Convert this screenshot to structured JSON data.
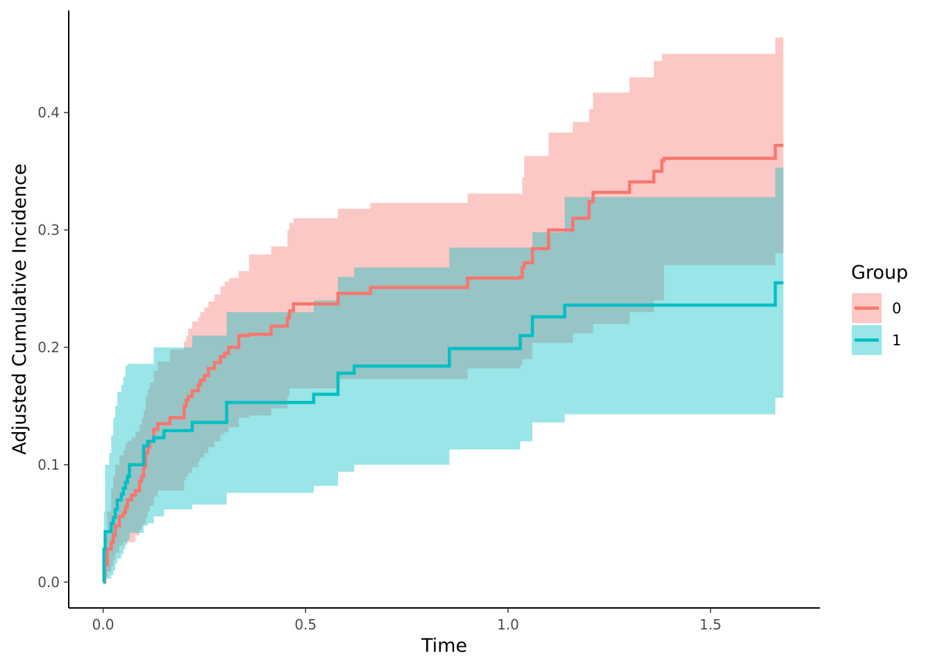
{
  "chart_data": {
    "type": "line",
    "step": true,
    "xlabel": "Time",
    "ylabel": "Adjusted Cumulative Incidence",
    "xlim": [
      -0.085,
      1.77
    ],
    "ylim": [
      -0.022,
      0.487
    ],
    "x_ticks": [
      0.0,
      0.5,
      1.0,
      1.5
    ],
    "x_tick_labels": [
      "0.0",
      "0.5",
      "1.0",
      "1.5"
    ],
    "y_ticks": [
      0.0,
      0.1,
      0.2,
      0.3,
      0.4
    ],
    "y_tick_labels": [
      "0.0",
      "0.1",
      "0.2",
      "0.3",
      "0.4"
    ],
    "grid": false,
    "legend": {
      "title": "Group",
      "position": "right",
      "entries": [
        "0",
        "1"
      ]
    },
    "series": [
      {
        "name": "0",
        "color": "#F8766D",
        "x": [
          0,
          0.004,
          0.01,
          0.02,
          0.025,
          0.03,
          0.04,
          0.05,
          0.055,
          0.06,
          0.07,
          0.08,
          0.09,
          0.095,
          0.1,
          0.105,
          0.11,
          0.115,
          0.125,
          0.135,
          0.165,
          0.2,
          0.205,
          0.21,
          0.22,
          0.235,
          0.24,
          0.25,
          0.26,
          0.275,
          0.29,
          0.3,
          0.31,
          0.335,
          0.36,
          0.415,
          0.455,
          0.46,
          0.47,
          0.58,
          0.66,
          0.9,
          1.03,
          1.035,
          1.04,
          1.06,
          1.1,
          1.16,
          1.2,
          1.21,
          1.3,
          1.36,
          1.38,
          1.385,
          1.66,
          1.68
        ],
        "y": [
          0,
          0.015,
          0.028,
          0.034,
          0.04,
          0.048,
          0.056,
          0.059,
          0.064,
          0.07,
          0.074,
          0.078,
          0.086,
          0.09,
          0.098,
          0.11,
          0.115,
          0.12,
          0.13,
          0.135,
          0.14,
          0.15,
          0.155,
          0.158,
          0.163,
          0.168,
          0.172,
          0.176,
          0.182,
          0.187,
          0.192,
          0.195,
          0.2,
          0.21,
          0.211,
          0.218,
          0.225,
          0.231,
          0.237,
          0.246,
          0.251,
          0.259,
          0.26,
          0.268,
          0.272,
          0.284,
          0.3,
          0.31,
          0.324,
          0.332,
          0.341,
          0.35,
          0.359,
          0.361,
          0.372,
          0.372
        ],
        "lower": [
          0,
          0.004,
          0.009,
          0.014,
          0.019,
          0.025,
          0.031,
          0.034,
          0.034,
          0.034,
          0.034,
          0.04,
          0.045,
          0.048,
          0.05,
          0.055,
          0.06,
          0.065,
          0.073,
          0.078,
          0.078,
          0.087,
          0.09,
          0.093,
          0.098,
          0.103,
          0.106,
          0.11,
          0.115,
          0.12,
          0.126,
          0.128,
          0.132,
          0.14,
          0.142,
          0.148,
          0.158,
          0.165,
          0.165,
          0.173,
          0.173,
          0.182,
          0.185,
          0.19,
          0.19,
          0.204,
          0.204,
          0.212,
          0.212,
          0.22,
          0.23,
          0.24,
          0.24,
          0.27,
          0.28,
          0.28
        ],
        "upper": [
          0,
          0.04,
          0.06,
          0.08,
          0.09,
          0.1,
          0.108,
          0.112,
          0.118,
          0.12,
          0.123,
          0.128,
          0.134,
          0.14,
          0.146,
          0.158,
          0.164,
          0.17,
          0.18,
          0.188,
          0.198,
          0.205,
          0.21,
          0.216,
          0.222,
          0.226,
          0.23,
          0.234,
          0.239,
          0.245,
          0.252,
          0.256,
          0.259,
          0.265,
          0.279,
          0.286,
          0.3,
          0.306,
          0.31,
          0.318,
          0.323,
          0.331,
          0.33,
          0.345,
          0.363,
          0.363,
          0.383,
          0.392,
          0.403,
          0.417,
          0.43,
          0.444,
          0.45,
          0.45,
          0.464,
          0.464
        ]
      },
      {
        "name": "1",
        "color": "#00BFC4",
        "x": [
          0,
          0.002,
          0.005,
          0.01,
          0.015,
          0.02,
          0.025,
          0.03,
          0.035,
          0.045,
          0.05,
          0.055,
          0.06,
          0.065,
          0.1,
          0.11,
          0.125,
          0.15,
          0.22,
          0.305,
          0.45,
          0.52,
          0.58,
          0.62,
          0.855,
          1.03,
          1.06,
          1.14,
          1.2,
          1.66,
          1.68
        ],
        "y": [
          0,
          0.028,
          0.043,
          0.043,
          0.043,
          0.05,
          0.055,
          0.062,
          0.07,
          0.075,
          0.08,
          0.085,
          0.09,
          0.1,
          0.116,
          0.12,
          0.123,
          0.129,
          0.136,
          0.153,
          0.153,
          0.16,
          0.178,
          0.184,
          0.199,
          0.21,
          0.226,
          0.236,
          0.236,
          0.255,
          0.255
        ],
        "lower": [
          0,
          0.0,
          0.003,
          0.003,
          0.003,
          0.006,
          0.01,
          0.016,
          0.02,
          0.024,
          0.028,
          0.032,
          0.036,
          0.042,
          0.048,
          0.05,
          0.056,
          0.062,
          0.066,
          0.076,
          0.076,
          0.082,
          0.094,
          0.1,
          0.113,
          0.12,
          0.136,
          0.143,
          0.143,
          0.157,
          0.157
        ],
        "upper": [
          0,
          0.06,
          0.1,
          0.1,
          0.11,
          0.125,
          0.14,
          0.15,
          0.162,
          0.168,
          0.175,
          0.184,
          0.186,
          0.186,
          0.186,
          0.186,
          0.2,
          0.2,
          0.21,
          0.23,
          0.23,
          0.24,
          0.26,
          0.268,
          0.285,
          0.285,
          0.298,
          0.328,
          0.328,
          0.353,
          0.353
        ]
      }
    ]
  }
}
